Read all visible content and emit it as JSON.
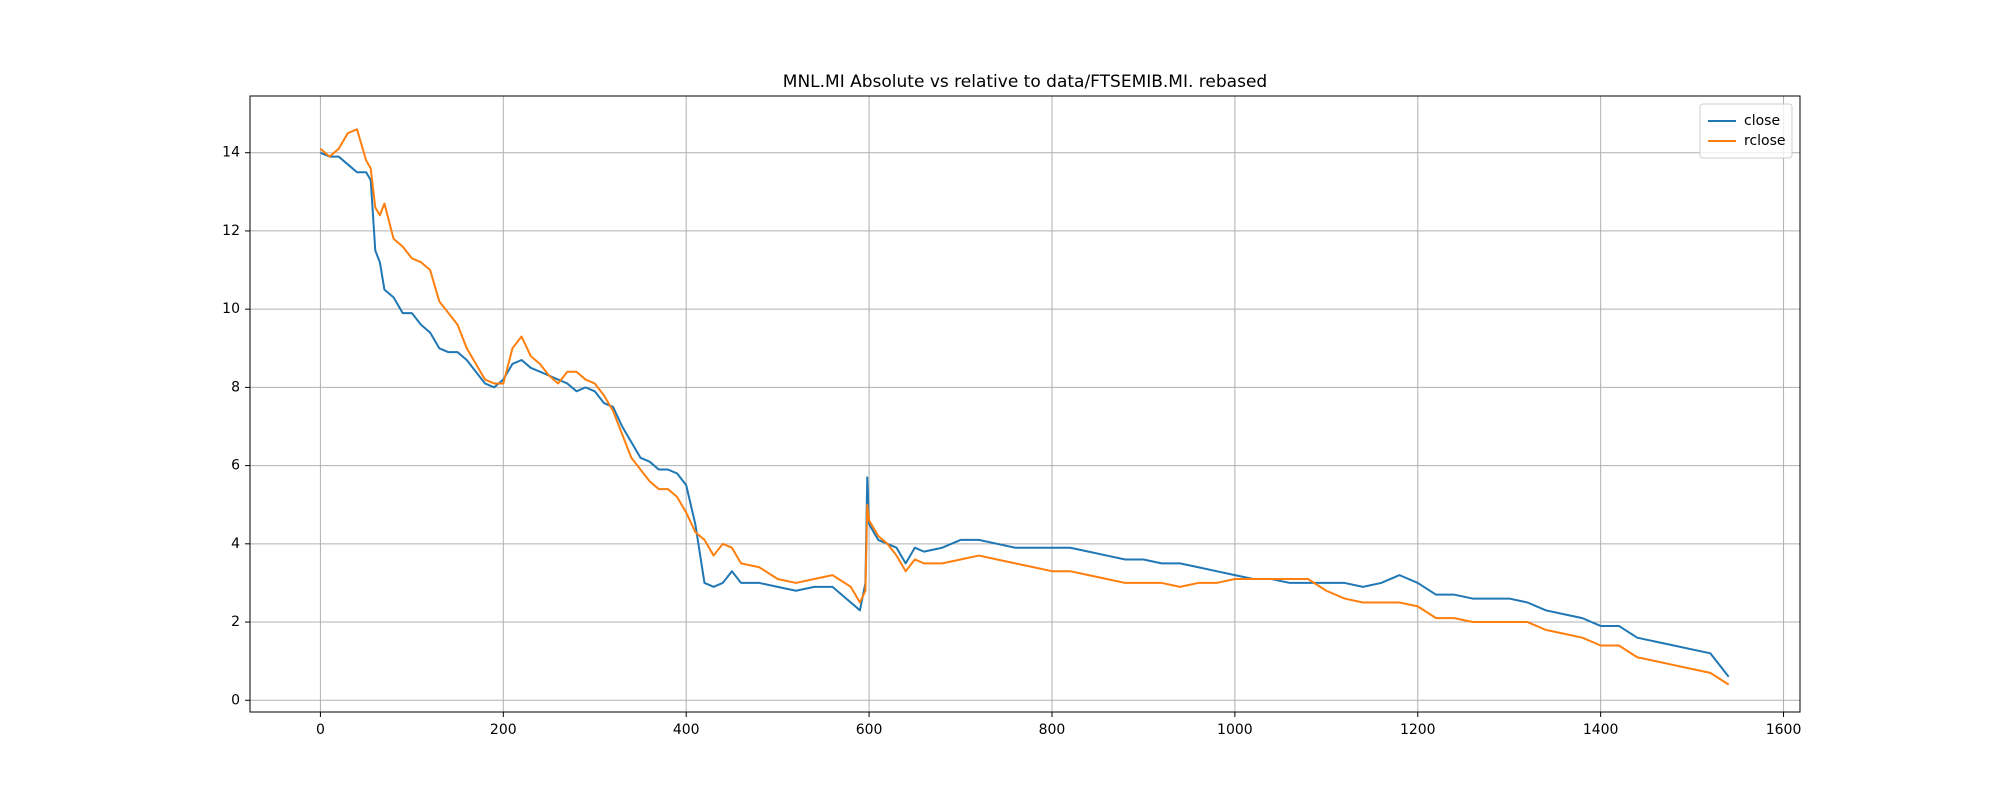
{
  "chart_data": {
    "type": "line",
    "title": "MNL.MI Absolute vs relative to data/FTSEMIB.MI. rebased",
    "x": [
      0,
      10,
      20,
      30,
      40,
      50,
      55,
      60,
      65,
      70,
      80,
      90,
      100,
      110,
      120,
      130,
      140,
      150,
      160,
      170,
      180,
      190,
      200,
      210,
      220,
      230,
      240,
      250,
      260,
      270,
      280,
      290,
      300,
      310,
      320,
      330,
      340,
      350,
      360,
      370,
      380,
      390,
      400,
      410,
      420,
      430,
      440,
      450,
      460,
      480,
      500,
      520,
      540,
      560,
      580,
      590,
      596,
      598,
      600,
      610,
      620,
      630,
      640,
      650,
      660,
      680,
      700,
      720,
      740,
      760,
      780,
      800,
      820,
      840,
      860,
      880,
      900,
      920,
      940,
      960,
      980,
      1000,
      1020,
      1040,
      1060,
      1080,
      1100,
      1120,
      1140,
      1160,
      1180,
      1200,
      1220,
      1240,
      1260,
      1280,
      1300,
      1320,
      1340,
      1360,
      1380,
      1400,
      1420,
      1440,
      1460,
      1480,
      1500,
      1520,
      1540
    ],
    "series": [
      {
        "name": "close",
        "color": "#1f77b4",
        "values": [
          14.0,
          13.9,
          13.9,
          13.7,
          13.5,
          13.5,
          13.3,
          11.5,
          11.2,
          10.5,
          10.3,
          9.9,
          9.9,
          9.6,
          9.4,
          9.0,
          8.9,
          8.9,
          8.7,
          8.4,
          8.1,
          8.0,
          8.2,
          8.6,
          8.7,
          8.5,
          8.4,
          8.3,
          8.2,
          8.1,
          7.9,
          8.0,
          7.9,
          7.6,
          7.5,
          7.0,
          6.6,
          6.2,
          6.1,
          5.9,
          5.9,
          5.8,
          5.5,
          4.5,
          3.0,
          2.9,
          3.0,
          3.3,
          3.0,
          3.0,
          2.9,
          2.8,
          2.9,
          2.9,
          2.5,
          2.3,
          3.0,
          5.7,
          4.5,
          4.1,
          4.0,
          3.9,
          3.5,
          3.9,
          3.8,
          3.9,
          4.1,
          4.1,
          4.0,
          3.9,
          3.9,
          3.9,
          3.9,
          3.8,
          3.7,
          3.6,
          3.6,
          3.5,
          3.5,
          3.4,
          3.3,
          3.2,
          3.1,
          3.1,
          3.0,
          3.0,
          3.0,
          3.0,
          2.9,
          3.0,
          3.2,
          3.0,
          2.7,
          2.7,
          2.6,
          2.6,
          2.6,
          2.5,
          2.3,
          2.2,
          2.1,
          1.9,
          1.9,
          1.6,
          1.5,
          1.4,
          1.3,
          1.2,
          0.6
        ]
      },
      {
        "name": "rclose",
        "color": "#ff7f0e",
        "values": [
          14.1,
          13.9,
          14.1,
          14.5,
          14.6,
          13.8,
          13.6,
          12.6,
          12.4,
          12.7,
          11.8,
          11.6,
          11.3,
          11.2,
          11.0,
          10.2,
          9.9,
          9.6,
          9.0,
          8.6,
          8.2,
          8.1,
          8.1,
          9.0,
          9.3,
          8.8,
          8.6,
          8.3,
          8.1,
          8.4,
          8.4,
          8.2,
          8.1,
          7.8,
          7.4,
          6.8,
          6.2,
          5.9,
          5.6,
          5.4,
          5.4,
          5.2,
          4.8,
          4.3,
          4.1,
          3.7,
          4.0,
          3.9,
          3.5,
          3.4,
          3.1,
          3.0,
          3.1,
          3.2,
          2.9,
          2.5,
          2.8,
          5.0,
          4.6,
          4.2,
          4.0,
          3.7,
          3.3,
          3.6,
          3.5,
          3.5,
          3.6,
          3.7,
          3.6,
          3.5,
          3.4,
          3.3,
          3.3,
          3.2,
          3.1,
          3.0,
          3.0,
          3.0,
          2.9,
          3.0,
          3.0,
          3.1,
          3.1,
          3.1,
          3.1,
          3.1,
          2.8,
          2.6,
          2.5,
          2.5,
          2.5,
          2.4,
          2.1,
          2.1,
          2.0,
          2.0,
          2.0,
          2.0,
          1.8,
          1.7,
          1.6,
          1.4,
          1.4,
          1.1,
          1.0,
          0.9,
          0.8,
          0.7,
          0.4
        ]
      }
    ],
    "xlim": [
      -77,
      1618
    ],
    "ylim": [
      -0.3,
      15.45
    ],
    "xticks": [
      0,
      200,
      400,
      600,
      800,
      1000,
      1200,
      1400,
      1600
    ],
    "yticks": [
      0,
      2,
      4,
      6,
      8,
      10,
      12,
      14
    ],
    "grid": true,
    "legend": "upper right"
  }
}
